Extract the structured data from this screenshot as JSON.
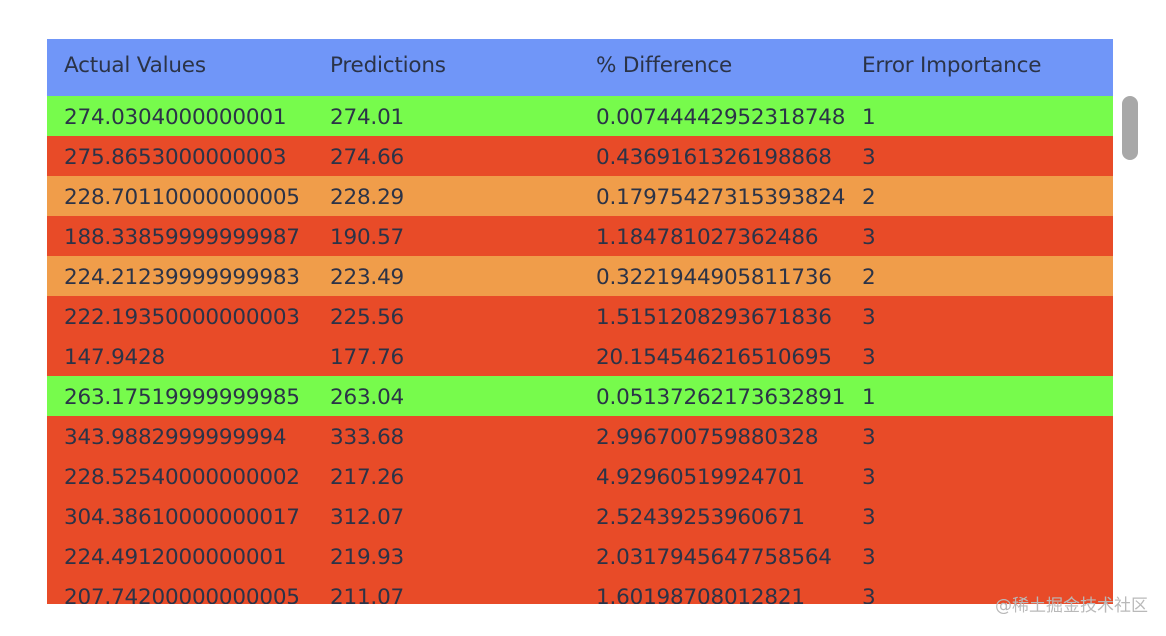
{
  "table": {
    "columns": [
      "Actual Values",
      "Predictions",
      "% Difference",
      "Error Importance"
    ],
    "importance_colors": {
      "1": "#77fb4c",
      "2": "#f09d4a",
      "3": "#e84b28"
    },
    "header_color": "#7096f8",
    "rows": [
      [
        "274.0304000000001",
        "274.01",
        "0.0074444295231874854",
        "1"
      ],
      [
        "275.8653000000003",
        "274.66",
        "0.4369161326198868",
        "3"
      ],
      [
        "228.70110000000005",
        "228.29",
        "0.17975427315393824",
        "2"
      ],
      [
        "188.33859999999987",
        "190.57",
        "1.184781027362486",
        "3"
      ],
      [
        "224.21239999999983",
        "223.49",
        "0.3221944905811736",
        "2"
      ],
      [
        "222.19350000000003",
        "225.56",
        "1.5151208293671836",
        "3"
      ],
      [
        "147.9428",
        "177.76",
        "20.154546216510695",
        "3"
      ],
      [
        "263.17519999999985",
        "263.04",
        "0.05137262173632891",
        "1"
      ],
      [
        "343.9882999999994",
        "333.68",
        "2.996700759880328",
        "3"
      ],
      [
        "228.52540000000002",
        "217.26",
        "4.92960519924701",
        "3"
      ],
      [
        "304.38610000000017",
        "312.07",
        "2.52439253960671",
        "3"
      ],
      [
        "224.4912000000001",
        "219.93",
        "2.0317945647758564",
        "3"
      ],
      [
        "207.74200000000005",
        "211.07",
        "1.60198708012821",
        "3"
      ]
    ]
  },
  "watermark": "@稀土掘金技术社区"
}
